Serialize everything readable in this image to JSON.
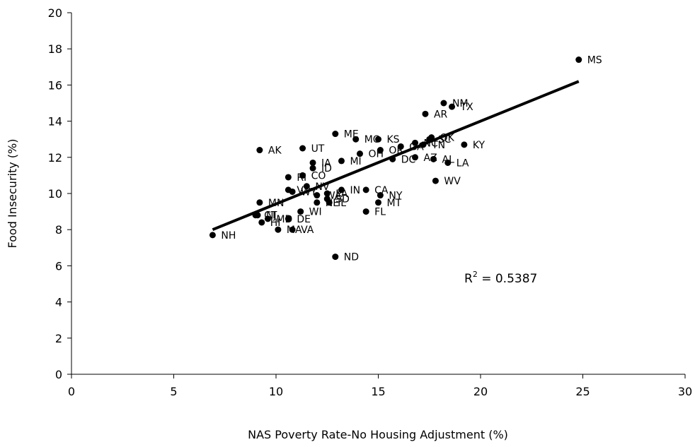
{
  "chart_data": {
    "type": "scatter",
    "title": "",
    "xlabel": "NAS Poverty Rate-No Housing Adjustment (%)",
    "ylabel": "Food Insecurity (%)",
    "xlim": [
      0,
      30
    ],
    "ylim": [
      0,
      20
    ],
    "xticks": [
      0,
      5,
      10,
      15,
      20,
      25,
      30
    ],
    "yticks": [
      0,
      2,
      4,
      6,
      8,
      10,
      12,
      14,
      16,
      18,
      20
    ],
    "grid": false,
    "legend": "none",
    "marker_color": "#000000",
    "points": [
      {
        "label": "MS",
        "x": 24.8,
        "y": 17.4
      },
      {
        "label": "NM",
        "x": 18.2,
        "y": 15.0
      },
      {
        "label": "TX",
        "x": 18.6,
        "y": 14.8
      },
      {
        "label": "AR",
        "x": 17.3,
        "y": 14.4
      },
      {
        "label": "ME",
        "x": 12.9,
        "y": 13.3
      },
      {
        "label": "MO",
        "x": 13.9,
        "y": 13.0
      },
      {
        "label": "KS",
        "x": 15.0,
        "y": 13.0
      },
      {
        "label": "GA",
        "x": 16.1,
        "y": 12.6
      },
      {
        "label": "OK",
        "x": 17.6,
        "y": 13.1
      },
      {
        "label": "SC",
        "x": 17.5,
        "y": 13.0
      },
      {
        "label": "NC",
        "x": 16.8,
        "y": 12.8
      },
      {
        "label": "TN",
        "x": 17.2,
        "y": 12.7
      },
      {
        "label": "KY",
        "x": 19.2,
        "y": 12.7
      },
      {
        "label": "OR",
        "x": 15.1,
        "y": 12.4
      },
      {
        "label": "OH",
        "x": 14.1,
        "y": 12.2
      },
      {
        "label": "AK",
        "x": 9.2,
        "y": 12.4
      },
      {
        "label": "UT",
        "x": 11.3,
        "y": 12.5
      },
      {
        "label": "AZ",
        "x": 16.8,
        "y": 12.0
      },
      {
        "label": "DC",
        "x": 15.7,
        "y": 11.9
      },
      {
        "label": "AL",
        "x": 17.7,
        "y": 11.9
      },
      {
        "label": "LA",
        "x": 18.4,
        "y": 11.7
      },
      {
        "label": "MI",
        "x": 13.2,
        "y": 11.8
      },
      {
        "label": "IA",
        "x": 11.8,
        "y": 11.7
      },
      {
        "label": "ID",
        "x": 11.8,
        "y": 11.4
      },
      {
        "label": "CO",
        "x": 11.3,
        "y": 11.0
      },
      {
        "label": "RI",
        "x": 10.6,
        "y": 10.9
      },
      {
        "label": "WV",
        "x": 17.8,
        "y": 10.7
      },
      {
        "label": "NV",
        "x": 11.5,
        "y": 10.4
      },
      {
        "label": "VT",
        "x": 10.6,
        "y": 10.2
      },
      {
        "label": "WY",
        "x": 10.8,
        "y": 10.1
      },
      {
        "label": "IN",
        "x": 13.2,
        "y": 10.2
      },
      {
        "label": "CA",
        "x": 14.4,
        "y": 10.2
      },
      {
        "label": "PA",
        "x": 12.5,
        "y": 10.0
      },
      {
        "label": "WA",
        "x": 12.0,
        "y": 9.9
      },
      {
        "label": "SD",
        "x": 12.5,
        "y": 9.7
      },
      {
        "label": "IL",
        "x": 12.6,
        "y": 9.5
      },
      {
        "label": "NE",
        "x": 12.0,
        "y": 9.5
      },
      {
        "label": "NY",
        "x": 15.1,
        "y": 9.9
      },
      {
        "label": "MT",
        "x": 15.0,
        "y": 9.5
      },
      {
        "label": "MN",
        "x": 9.2,
        "y": 9.5
      },
      {
        "label": "FL",
        "x": 14.4,
        "y": 9.0
      },
      {
        "label": "WI",
        "x": 11.2,
        "y": 9.0
      },
      {
        "label": "DE",
        "x": 10.6,
        "y": 8.6
      },
      {
        "label": "NJ",
        "x": 9.1,
        "y": 8.8
      },
      {
        "label": "CT",
        "x": 9.0,
        "y": 8.8
      },
      {
        "label": "MD",
        "x": 9.6,
        "y": 8.6
      },
      {
        "label": "HI",
        "x": 9.3,
        "y": 8.4
      },
      {
        "label": "MA",
        "x": 10.1,
        "y": 8.0
      },
      {
        "label": "VA",
        "x": 10.8,
        "y": 8.0
      },
      {
        "label": "NH",
        "x": 6.9,
        "y": 7.7
      },
      {
        "label": "ND",
        "x": 12.9,
        "y": 6.5
      }
    ],
    "trendline": {
      "type": "linear",
      "x": [
        6.9,
        24.8
      ],
      "y": [
        8.0,
        16.2
      ],
      "color": "#000000"
    },
    "annotation": {
      "base": "R",
      "superscript": "2",
      "rest": " = 0.5387"
    }
  }
}
